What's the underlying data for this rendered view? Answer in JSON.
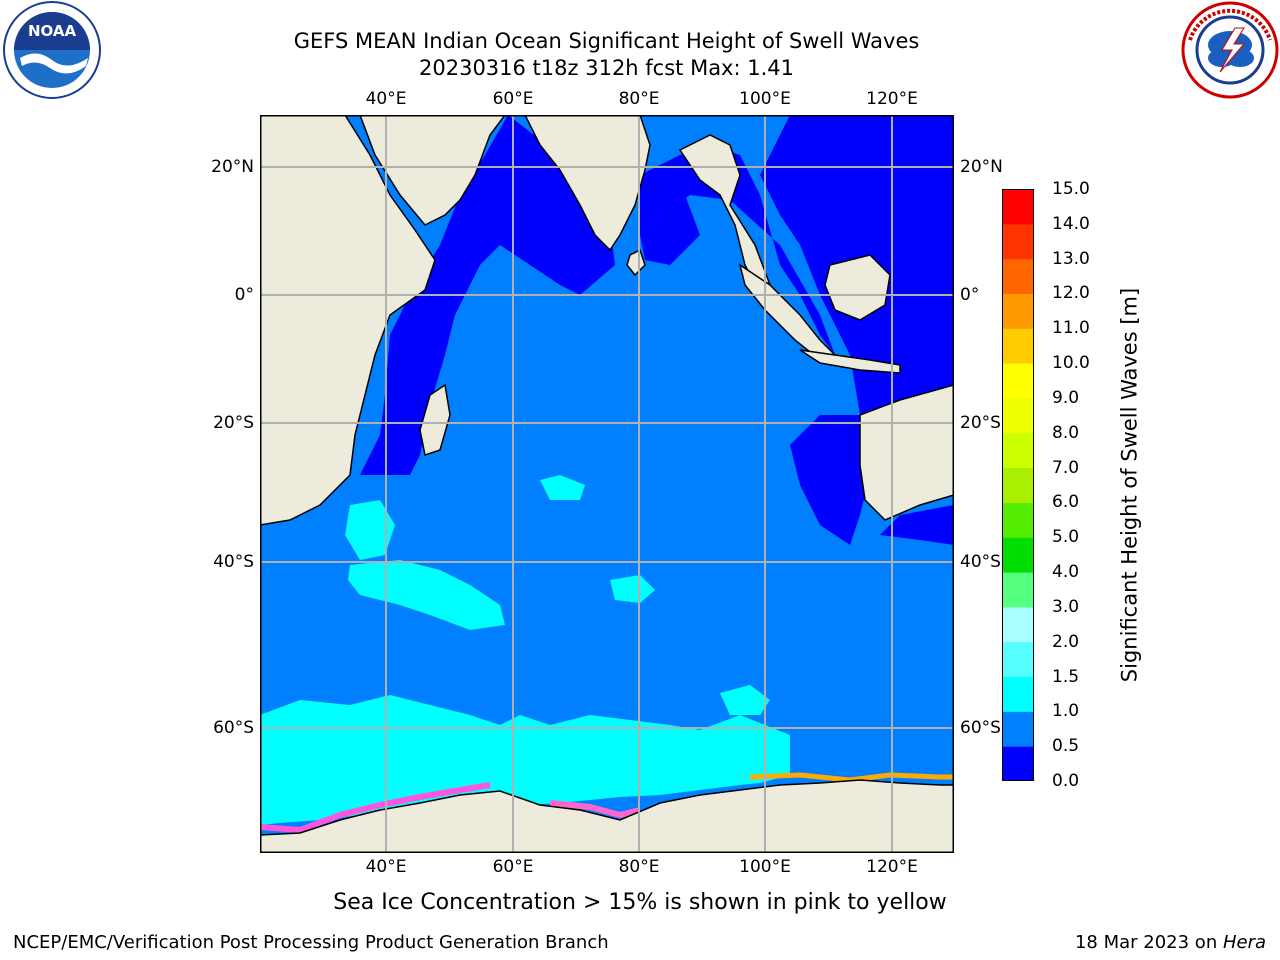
{
  "title": {
    "line1": "GEFS MEAN Indian Ocean Significant Height of Swell Waves",
    "line2": "20230316 t18z 312h fcst   Max: 1.41"
  },
  "logos": {
    "noaa": {
      "text": "NOAA",
      "icon": "noaa-logo-icon"
    },
    "nws": {
      "icon": "national-weather-service-logo-icon"
    }
  },
  "map": {
    "lon_labels": [
      "40°E",
      "60°E",
      "80°E",
      "100°E",
      "120°E"
    ],
    "lat_labels": [
      "20°N",
      "0°",
      "20°S",
      "40°S",
      "60°S"
    ],
    "colors": {
      "land": "#ecebdc",
      "ocean_low": "#0000ff",
      "ocean_mid": "#0080ff",
      "ocean_high": "#00ffff",
      "grid": "#b0b0b0"
    }
  },
  "colorbar": {
    "label": "Significant Height of Swell Waves [m]",
    "ticks": [
      "0.0",
      "0.5",
      "1.0",
      "1.5",
      "2.0",
      "3.0",
      "4.0",
      "5.0",
      "6.0",
      "7.0",
      "8.0",
      "9.0",
      "10.0",
      "11.0",
      "12.0",
      "13.0",
      "14.0",
      "15.0"
    ],
    "colors": [
      "#0000ff",
      "#0080ff",
      "#00ffff",
      "#55ffff",
      "#aaffff",
      "#55ff80",
      "#00dd00",
      "#55ee00",
      "#aaee00",
      "#ccff00",
      "#eeff00",
      "#ffff00",
      "#ffcc00",
      "#ff9900",
      "#ff6600",
      "#ff3300",
      "#ff0000"
    ]
  },
  "note": "Sea Ice Concentration > 15% is shown in pink to yellow",
  "footer": {
    "left": "NCEP/EMC/Verification Post Processing Product Generation Branch",
    "right_date": "18 Mar 2023 on ",
    "right_machine": "Hera"
  }
}
